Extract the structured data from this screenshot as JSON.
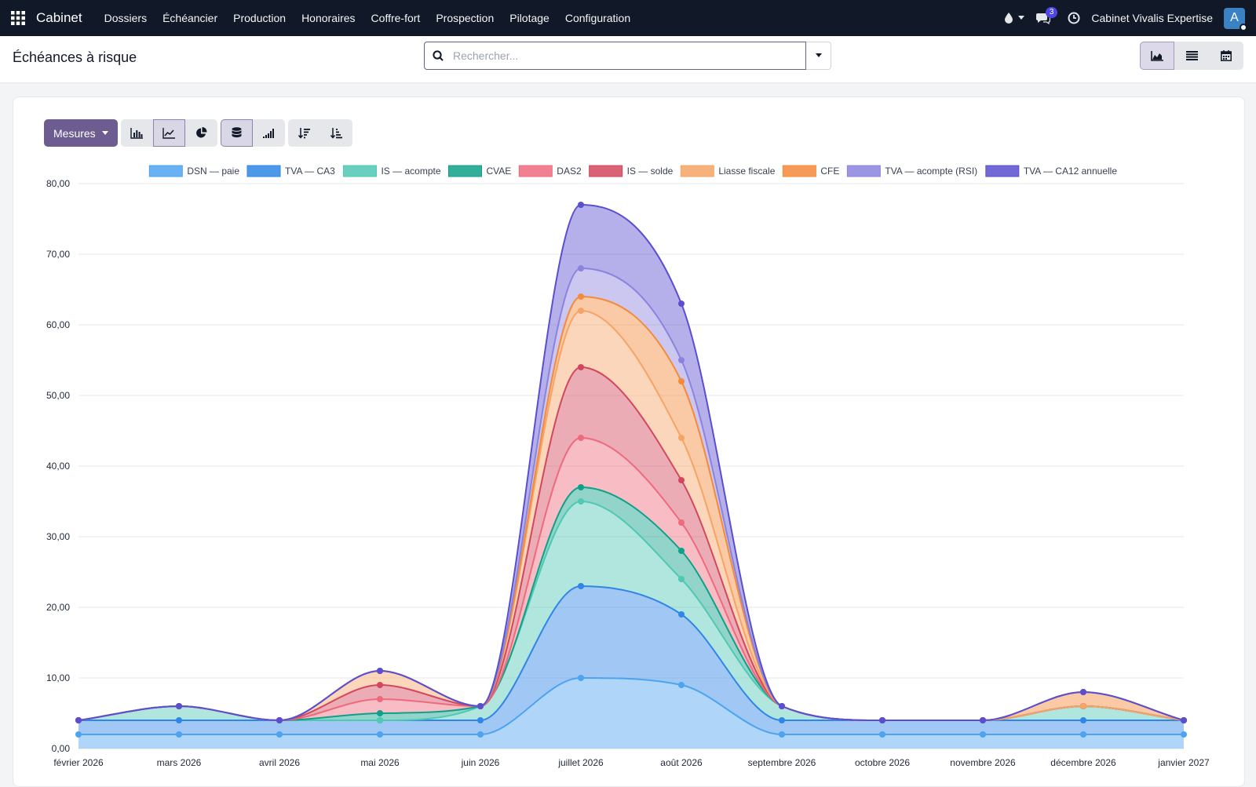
{
  "navbar": {
    "brand": "Cabinet",
    "menu": [
      "Dossiers",
      "Échéancier",
      "Production",
      "Honoraires",
      "Coffre-fort",
      "Prospection",
      "Pilotage",
      "Configuration"
    ],
    "messages_count": "3",
    "company": "Cabinet Vivalis Expertise",
    "avatar_letter": "A"
  },
  "controlbar": {
    "title": "Échéances à risque",
    "search_placeholder": "Rechercher..."
  },
  "toolbar": {
    "measures_label": "Mesures"
  },
  "chart_data": {
    "type": "area",
    "stacked": true,
    "categories": [
      "février 2026",
      "mars 2026",
      "avril 2026",
      "mai 2026",
      "juin 2026",
      "juillet 2026",
      "août 2026",
      "septembre 2026",
      "octobre 2026",
      "novembre 2026",
      "décembre 2026",
      "janvier 2027"
    ],
    "y_ticks": [
      "0,00",
      "10,00",
      "20,00",
      "30,00",
      "40,00",
      "50,00",
      "60,00",
      "70,00",
      "80,00"
    ],
    "ylim": [
      0,
      80
    ],
    "legend_position": "top",
    "grid": true,
    "series": [
      {
        "name": "DSN — paie",
        "color": "#4ea3f0",
        "values": [
          2,
          2,
          2,
          2,
          2,
          10,
          9,
          2,
          2,
          2,
          2,
          2
        ]
      },
      {
        "name": "TVA — CA3",
        "color": "#2f86e6",
        "values": [
          2,
          2,
          2,
          2,
          2,
          13,
          10,
          2,
          2,
          2,
          2,
          2
        ]
      },
      {
        "name": "IS — acompte",
        "color": "#4fc8b4",
        "values": [
          0,
          2,
          0,
          0,
          2,
          12,
          5,
          2,
          0,
          0,
          2,
          0
        ]
      },
      {
        "name": "CVAE",
        "color": "#0fa08a",
        "values": [
          0,
          0,
          0,
          1,
          0,
          2,
          4,
          0,
          0,
          0,
          0,
          0
        ]
      },
      {
        "name": "DAS2",
        "color": "#ee6a7c",
        "values": [
          0,
          0,
          0,
          2,
          0,
          7,
          4,
          0,
          0,
          0,
          0,
          0
        ]
      },
      {
        "name": "IS — solde",
        "color": "#d2475e",
        "values": [
          0,
          0,
          0,
          2,
          0,
          10,
          6,
          0,
          0,
          0,
          0,
          0
        ]
      },
      {
        "name": "Liasse fiscale",
        "color": "#f6a465",
        "values": [
          0,
          0,
          0,
          2,
          0,
          8,
          6,
          0,
          0,
          0,
          0,
          0
        ]
      },
      {
        "name": "CFE",
        "color": "#f48a3a",
        "values": [
          0,
          0,
          0,
          0,
          0,
          2,
          8,
          0,
          0,
          0,
          2,
          0
        ]
      },
      {
        "name": "TVA — acompte (RSI)",
        "color": "#8b83de",
        "values": [
          0,
          0,
          0,
          0,
          0,
          4,
          3,
          0,
          0,
          0,
          0,
          0
        ]
      },
      {
        "name": "TVA — CA12 annuelle",
        "color": "#5a4fcf",
        "values": [
          0,
          0,
          0,
          0,
          0,
          9,
          8,
          0,
          0,
          0,
          0,
          0
        ]
      }
    ]
  }
}
